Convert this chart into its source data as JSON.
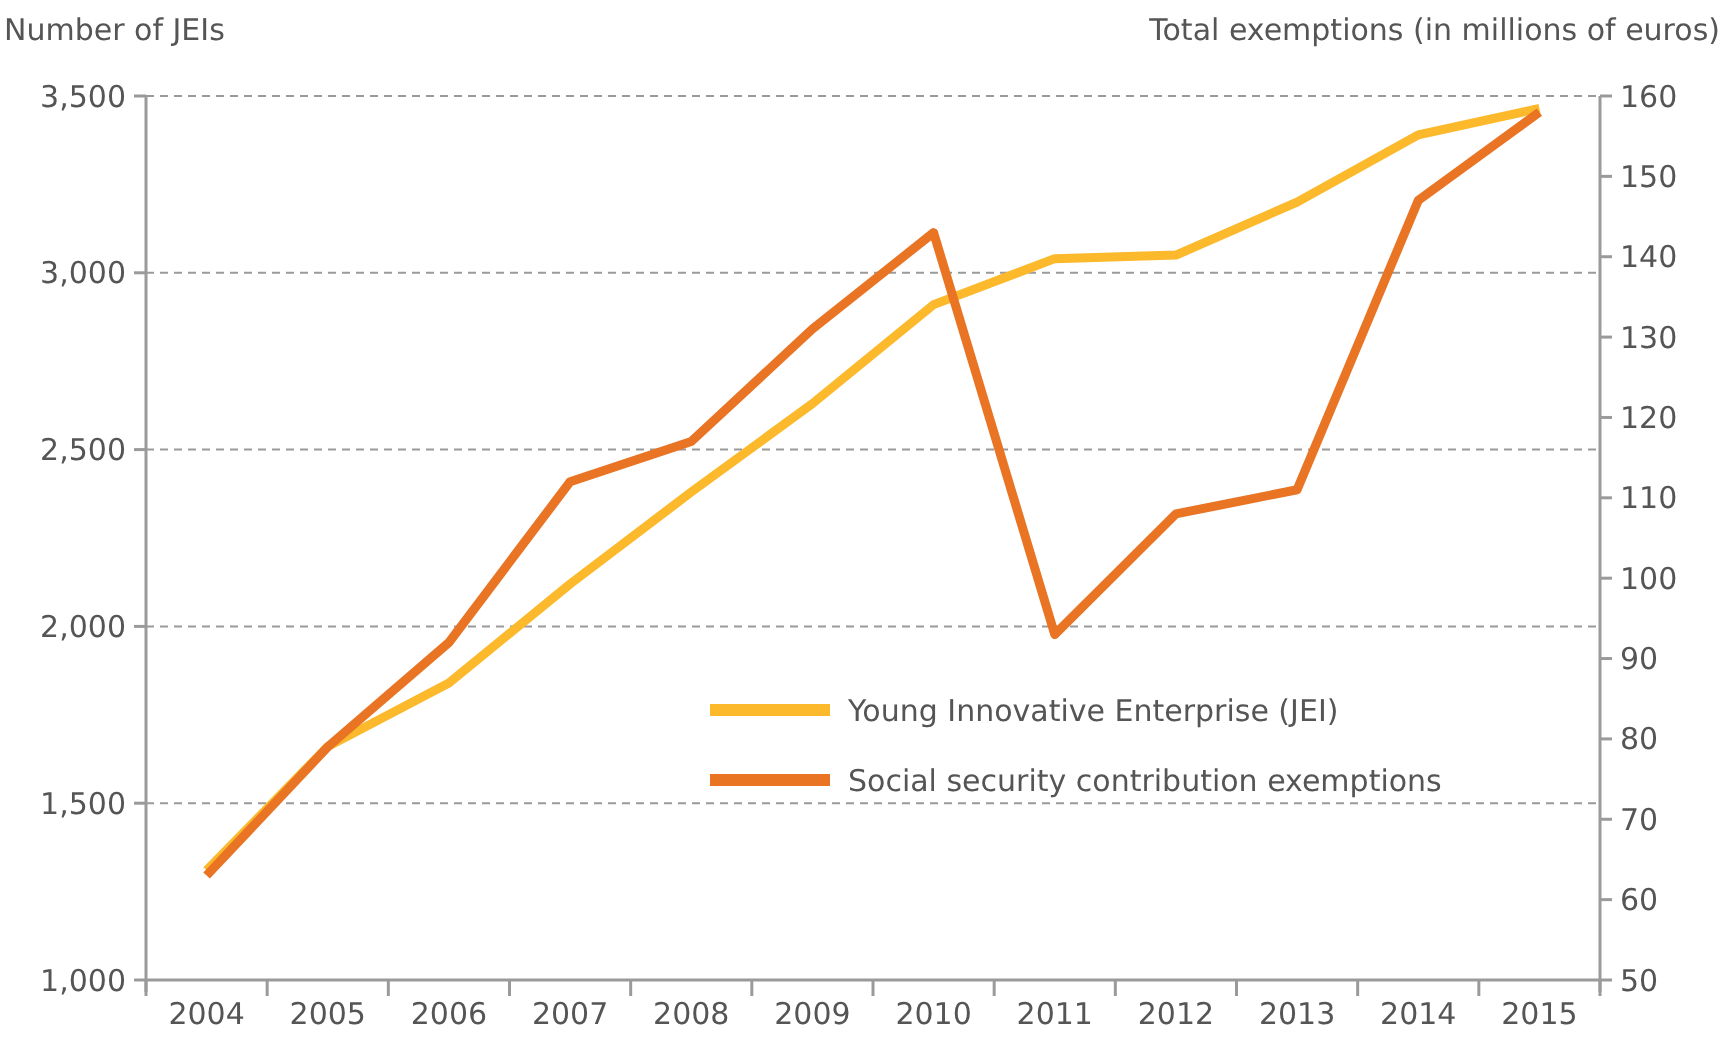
{
  "chart_data": {
    "type": "line",
    "ylabel": "Number of JEIs",
    "y2label": "Total exemptions (in millions of euros)",
    "categories": [
      "2004",
      "2005",
      "2006",
      "2007",
      "2008",
      "2009",
      "2010",
      "2011",
      "2012",
      "2013",
      "2014",
      "2015"
    ],
    "series": [
      {
        "name": "Young Innovative Enterprise (JEI)",
        "color": "#fbb92b",
        "values": [
          1310,
          1660,
          1840,
          2120,
          2380,
          2630,
          2910,
          3040,
          3050,
          3200,
          3390,
          3465
        ]
      },
      {
        "name": "Social security contribution exemptions",
        "color": "#e87424",
        "axis": "y2",
        "values": [
          63,
          79,
          92,
          112,
          117,
          131,
          143,
          93,
          108,
          111,
          147,
          158
        ]
      }
    ],
    "ylim": [
      1000,
      3500
    ],
    "yticks": [
      {
        "value": 1000,
        "label": "1,000"
      },
      {
        "value": 1500,
        "label": "1,500"
      },
      {
        "value": 2000,
        "label": "2,000"
      },
      {
        "value": 2500,
        "label": "2,500"
      },
      {
        "value": 3000,
        "label": "3,000"
      },
      {
        "value": 3500,
        "label": "3,500"
      }
    ],
    "y2lim": [
      50,
      160
    ],
    "y2ticks": [
      50,
      60,
      70,
      80,
      90,
      100,
      110,
      120,
      130,
      140,
      150,
      160
    ],
    "grid": "y",
    "legend": "bottom right",
    "marker": "none",
    "line_style": "solid"
  }
}
